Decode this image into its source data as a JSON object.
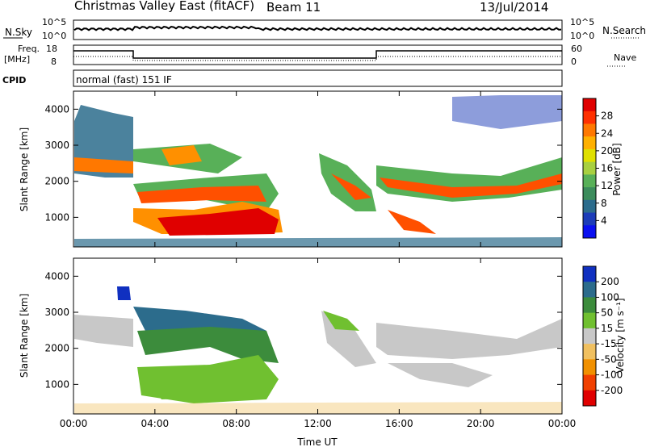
{
  "header": {
    "station": "Christmas Valley East (fitACF)",
    "beam": "Beam 11",
    "date": "13/Jul/2014"
  },
  "noise_panel": {
    "left_label": "N.Sky",
    "right_label": "N.Search",
    "ticks_left": [
      "10^5",
      "10^0"
    ],
    "ticks_right": [
      "10^5",
      "10^0"
    ]
  },
  "freq_panel": {
    "left_label_1": "Freq.",
    "left_label_2": "[MHz]",
    "right_label": "Nave",
    "ticks_left": [
      "18",
      "8"
    ],
    "ticks_right": [
      "60",
      "0"
    ]
  },
  "cpid_panel": {
    "label": "CPID",
    "text": "normal (fast) 151 IF"
  },
  "chart_data": [
    {
      "type": "heatmap",
      "name": "power",
      "ylabel": "Slant Range [km]",
      "yticks": [
        1000,
        2000,
        3000,
        4000
      ],
      "ylim": [
        180,
        4500
      ],
      "xlim": [
        0,
        24
      ],
      "colorbar": {
        "label": "Power [dB]",
        "ticks": [
          "28",
          "24",
          "20",
          "16",
          "12",
          "8",
          "4"
        ],
        "colors": [
          "#e00000",
          "#ff3000",
          "#ff7800",
          "#ffb000",
          "#e0e000",
          "#a8d040",
          "#58b058",
          "#3c8c5c",
          "#2c6c8c",
          "#1c3cb8",
          "#0a10f0"
        ]
      }
    },
    {
      "type": "heatmap",
      "name": "velocity",
      "ylabel": "Slant Range [km]",
      "yticks": [
        1000,
        2000,
        3000,
        4000
      ],
      "ylim": [
        180,
        4500
      ],
      "xlim": [
        0,
        24
      ],
      "colorbar": {
        "label": "Velocity [m s⁻¹]",
        "ticks": [
          "200",
          "100",
          "50",
          "15",
          "-15",
          "-50",
          "-100",
          "-200"
        ],
        "colors": [
          "#1030c0",
          "#2c6c8c",
          "#3c8c3c",
          "#70c030",
          "#c8c8c8",
          "#f0c060",
          "#f09000",
          "#f04000",
          "#e00000"
        ]
      }
    }
  ],
  "x_axis": {
    "ticks": [
      "00:00",
      "04:00",
      "08:00",
      "12:00",
      "16:00",
      "20:00",
      "00:00"
    ],
    "label": "Time UT"
  }
}
